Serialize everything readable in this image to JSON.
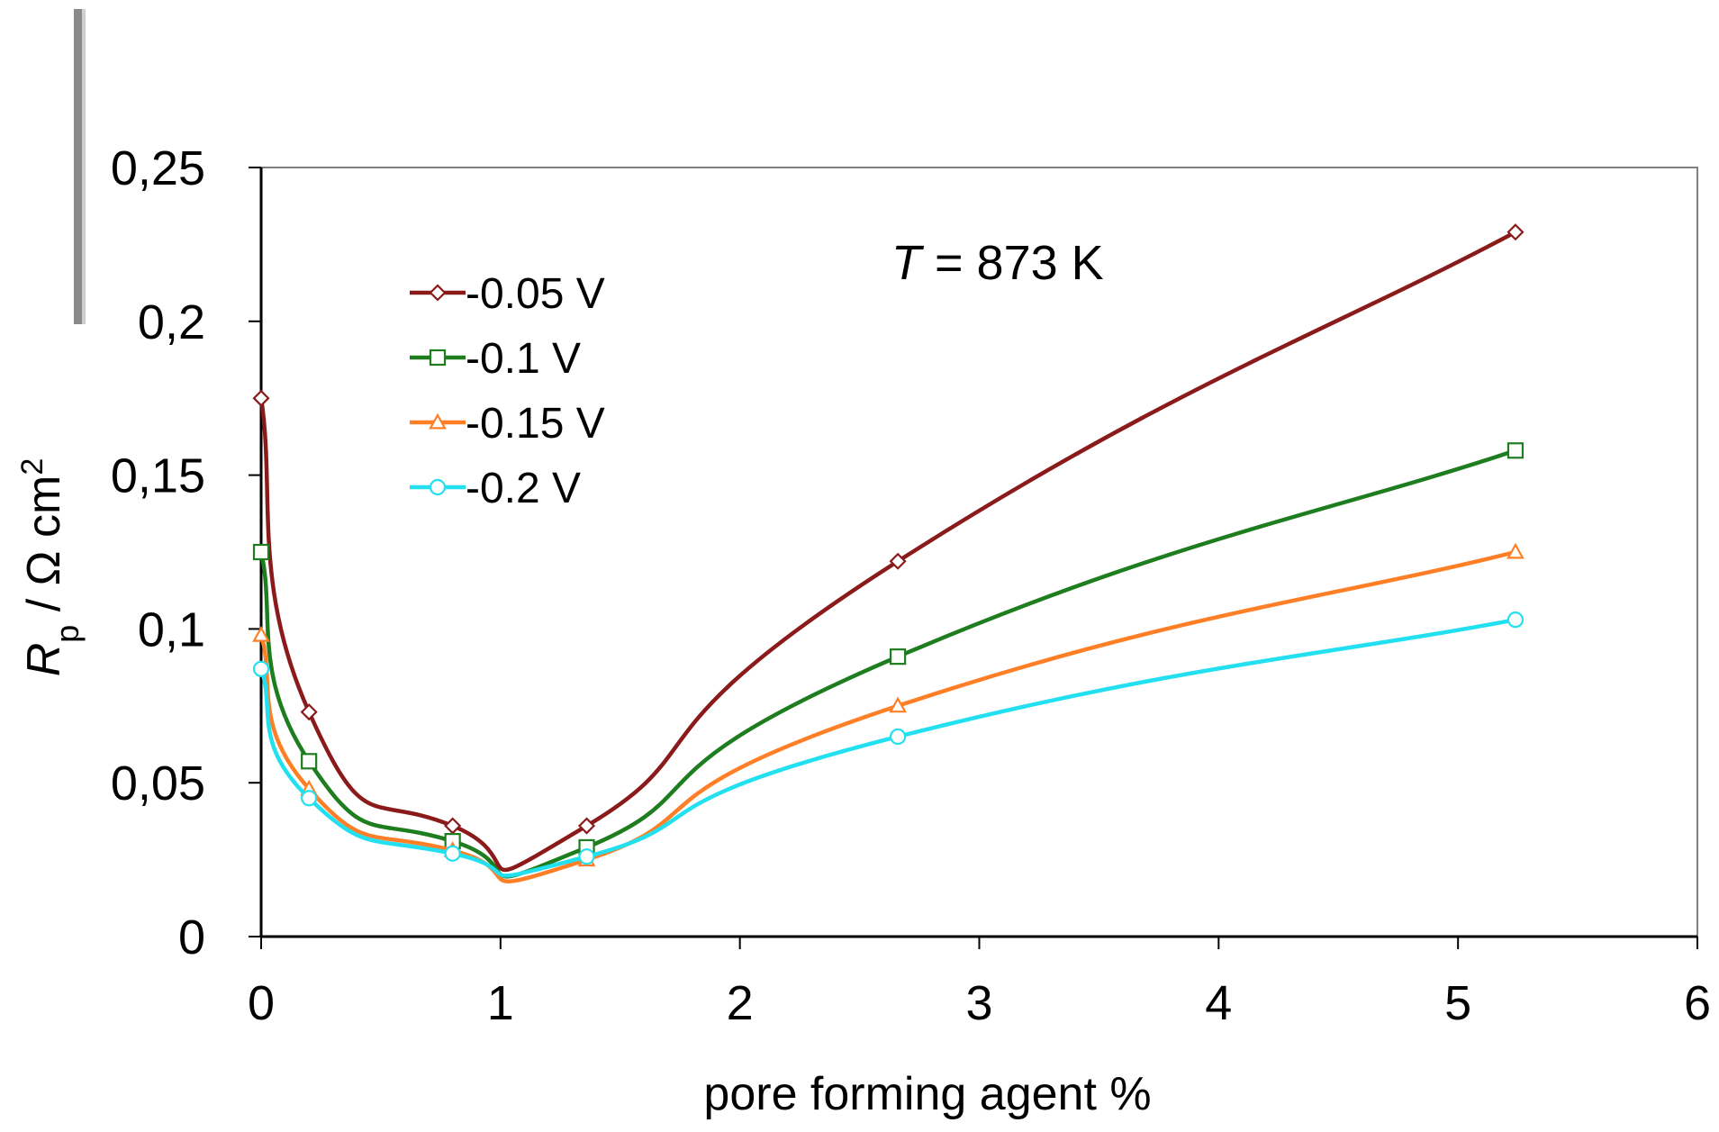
{
  "chart_data": {
    "type": "line",
    "xlabel": "pore forming agent %",
    "ylabel": "Rp / Ω cm2",
    "ylabel_parts": {
      "italic": "R",
      "sub": "p",
      "rest": " / Ω cm",
      "sup": "2"
    },
    "annotation": {
      "italic": "T",
      "text": " = 873 K"
    },
    "xlim": [
      0,
      6
    ],
    "ylim": [
      0,
      0.25
    ],
    "xticks": [
      0,
      1,
      2,
      3,
      4,
      5,
      6
    ],
    "xtick_labels": [
      "0",
      "1",
      "2",
      "3",
      "4",
      "5",
      "6"
    ],
    "yticks": [
      0,
      0.05,
      0.1,
      0.15,
      0.2,
      0.25
    ],
    "ytick_labels": [
      "0",
      "0,05",
      "0,1",
      "0,15",
      "0,2",
      "0,25"
    ],
    "grid": false,
    "legend_position": "upper-left",
    "x": [
      0,
      0.2,
      0.8,
      1.36,
      2.66,
      5.24
    ],
    "series": [
      {
        "name": "-0.05 V",
        "marker": "diamond",
        "color": "#8b1a1a",
        "values": [
          0.175,
          0.073,
          0.036,
          0.036,
          0.122,
          0.229
        ]
      },
      {
        "name": "-0.1 V",
        "marker": "square",
        "color": "#1e7d1e",
        "values": [
          0.125,
          0.057,
          0.031,
          0.029,
          0.091,
          0.158
        ]
      },
      {
        "name": "-0.15 V",
        "marker": "triangle",
        "color": "#ff7f27",
        "values": [
          0.098,
          0.048,
          0.028,
          0.025,
          0.075,
          0.125
        ]
      },
      {
        "name": "-0.2 V",
        "marker": "circle",
        "color": "#22e0f0",
        "values": [
          0.087,
          0.045,
          0.027,
          0.026,
          0.065,
          0.103
        ]
      }
    ]
  }
}
